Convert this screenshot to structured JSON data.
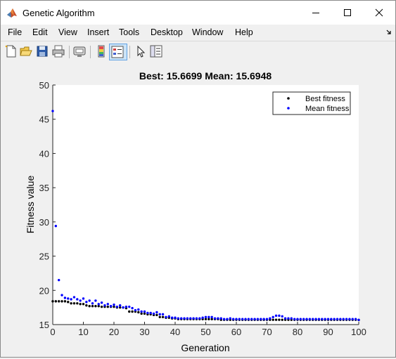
{
  "window": {
    "title": "Genetic Algorithm"
  },
  "menu": [
    "File",
    "Edit",
    "View",
    "Insert",
    "Tools",
    "Desktop",
    "Window",
    "Help"
  ],
  "toolbar": {
    "icons": [
      "new-figure-icon",
      "open-file-icon",
      "save-icon",
      "print-icon",
      "link-plot-icon",
      "insert-colorbar-icon",
      "insert-legend-icon",
      "edit-plot-icon",
      "property-inspector-icon"
    ]
  },
  "colors": {
    "best": "#000000",
    "mean": "#0000ff",
    "plot_bg": "#ffffff"
  },
  "chart_data": {
    "type": "scatter",
    "title": "Best: 15.6699 Mean: 15.6948",
    "xlabel": "Generation",
    "ylabel": "Fitness value",
    "xlim": [
      0,
      100
    ],
    "ylim": [
      15,
      50
    ],
    "xticks": [
      "0",
      "10",
      "20",
      "30",
      "40",
      "50",
      "60",
      "70",
      "80",
      "90",
      "100"
    ],
    "yticks": [
      "15",
      "20",
      "25",
      "30",
      "35",
      "40",
      "45",
      "50"
    ],
    "legend": {
      "position": "top-right",
      "entries": [
        "Best fitness",
        "Mean fitness"
      ]
    },
    "grid": false,
    "x": [
      0,
      1,
      2,
      3,
      4,
      5,
      6,
      7,
      8,
      9,
      10,
      11,
      12,
      13,
      14,
      15,
      16,
      17,
      18,
      19,
      20,
      21,
      22,
      23,
      24,
      25,
      26,
      27,
      28,
      29,
      30,
      31,
      32,
      33,
      34,
      35,
      36,
      37,
      38,
      39,
      40,
      41,
      42,
      43,
      44,
      45,
      46,
      47,
      48,
      49,
      50,
      51,
      52,
      53,
      54,
      55,
      56,
      57,
      58,
      59,
      60,
      61,
      62,
      63,
      64,
      65,
      66,
      67,
      68,
      69,
      70,
      71,
      72,
      73,
      74,
      75,
      76,
      77,
      78,
      79,
      80,
      81,
      82,
      83,
      84,
      85,
      86,
      87,
      88,
      89,
      90,
      91,
      92,
      93,
      94,
      95,
      96,
      97,
      98,
      99,
      100
    ],
    "series": [
      {
        "name": "Best fitness",
        "values": [
          18.4,
          18.4,
          18.4,
          18.4,
          18.4,
          18.3,
          18.1,
          18.1,
          18.1,
          18.0,
          18.0,
          17.8,
          17.7,
          17.7,
          17.7,
          17.7,
          17.6,
          17.6,
          17.6,
          17.6,
          17.6,
          17.5,
          17.5,
          17.5,
          17.4,
          16.9,
          16.9,
          16.9,
          16.8,
          16.6,
          16.6,
          16.5,
          16.5,
          16.4,
          16.4,
          16.1,
          16.1,
          16.0,
          16.0,
          15.9,
          15.9,
          15.8,
          15.8,
          15.8,
          15.8,
          15.8,
          15.8,
          15.8,
          15.8,
          15.8,
          15.8,
          15.8,
          15.8,
          15.8,
          15.8,
          15.7,
          15.7,
          15.7,
          15.7,
          15.7,
          15.7,
          15.7,
          15.7,
          15.7,
          15.7,
          15.7,
          15.7,
          15.7,
          15.7,
          15.7,
          15.7,
          15.7,
          15.7,
          15.7,
          15.7,
          15.7,
          15.7,
          15.7,
          15.7,
          15.7,
          15.7,
          15.7,
          15.7,
          15.7,
          15.7,
          15.7,
          15.7,
          15.7,
          15.7,
          15.7,
          15.7,
          15.7,
          15.7,
          15.7,
          15.7,
          15.7,
          15.7,
          15.7,
          15.7,
          15.7,
          15.67
        ]
      },
      {
        "name": "Mean fitness",
        "values": [
          46.2,
          29.4,
          21.5,
          19.3,
          18.9,
          18.8,
          18.7,
          19.0,
          18.7,
          18.5,
          18.8,
          18.3,
          18.5,
          18.1,
          18.5,
          18.0,
          18.2,
          17.8,
          18.0,
          17.7,
          17.9,
          17.6,
          17.8,
          17.5,
          17.6,
          17.6,
          17.4,
          17.1,
          17.2,
          16.9,
          16.9,
          16.7,
          16.7,
          16.6,
          16.8,
          16.5,
          16.5,
          16.1,
          16.2,
          16.0,
          16.0,
          15.9,
          15.9,
          15.9,
          15.9,
          15.9,
          15.9,
          15.9,
          15.9,
          16.0,
          16.1,
          16.1,
          16.1,
          15.9,
          15.9,
          15.9,
          15.8,
          15.8,
          15.9,
          15.8,
          15.8,
          15.8,
          15.8,
          15.8,
          15.8,
          15.8,
          15.8,
          15.8,
          15.8,
          15.8,
          15.8,
          15.9,
          16.1,
          16.3,
          16.3,
          16.2,
          15.9,
          15.9,
          15.9,
          15.8,
          15.8,
          15.8,
          15.8,
          15.8,
          15.8,
          15.8,
          15.8,
          15.8,
          15.8,
          15.8,
          15.8,
          15.8,
          15.8,
          15.8,
          15.8,
          15.8,
          15.8,
          15.8,
          15.8,
          15.8,
          15.69
        ]
      }
    ]
  }
}
